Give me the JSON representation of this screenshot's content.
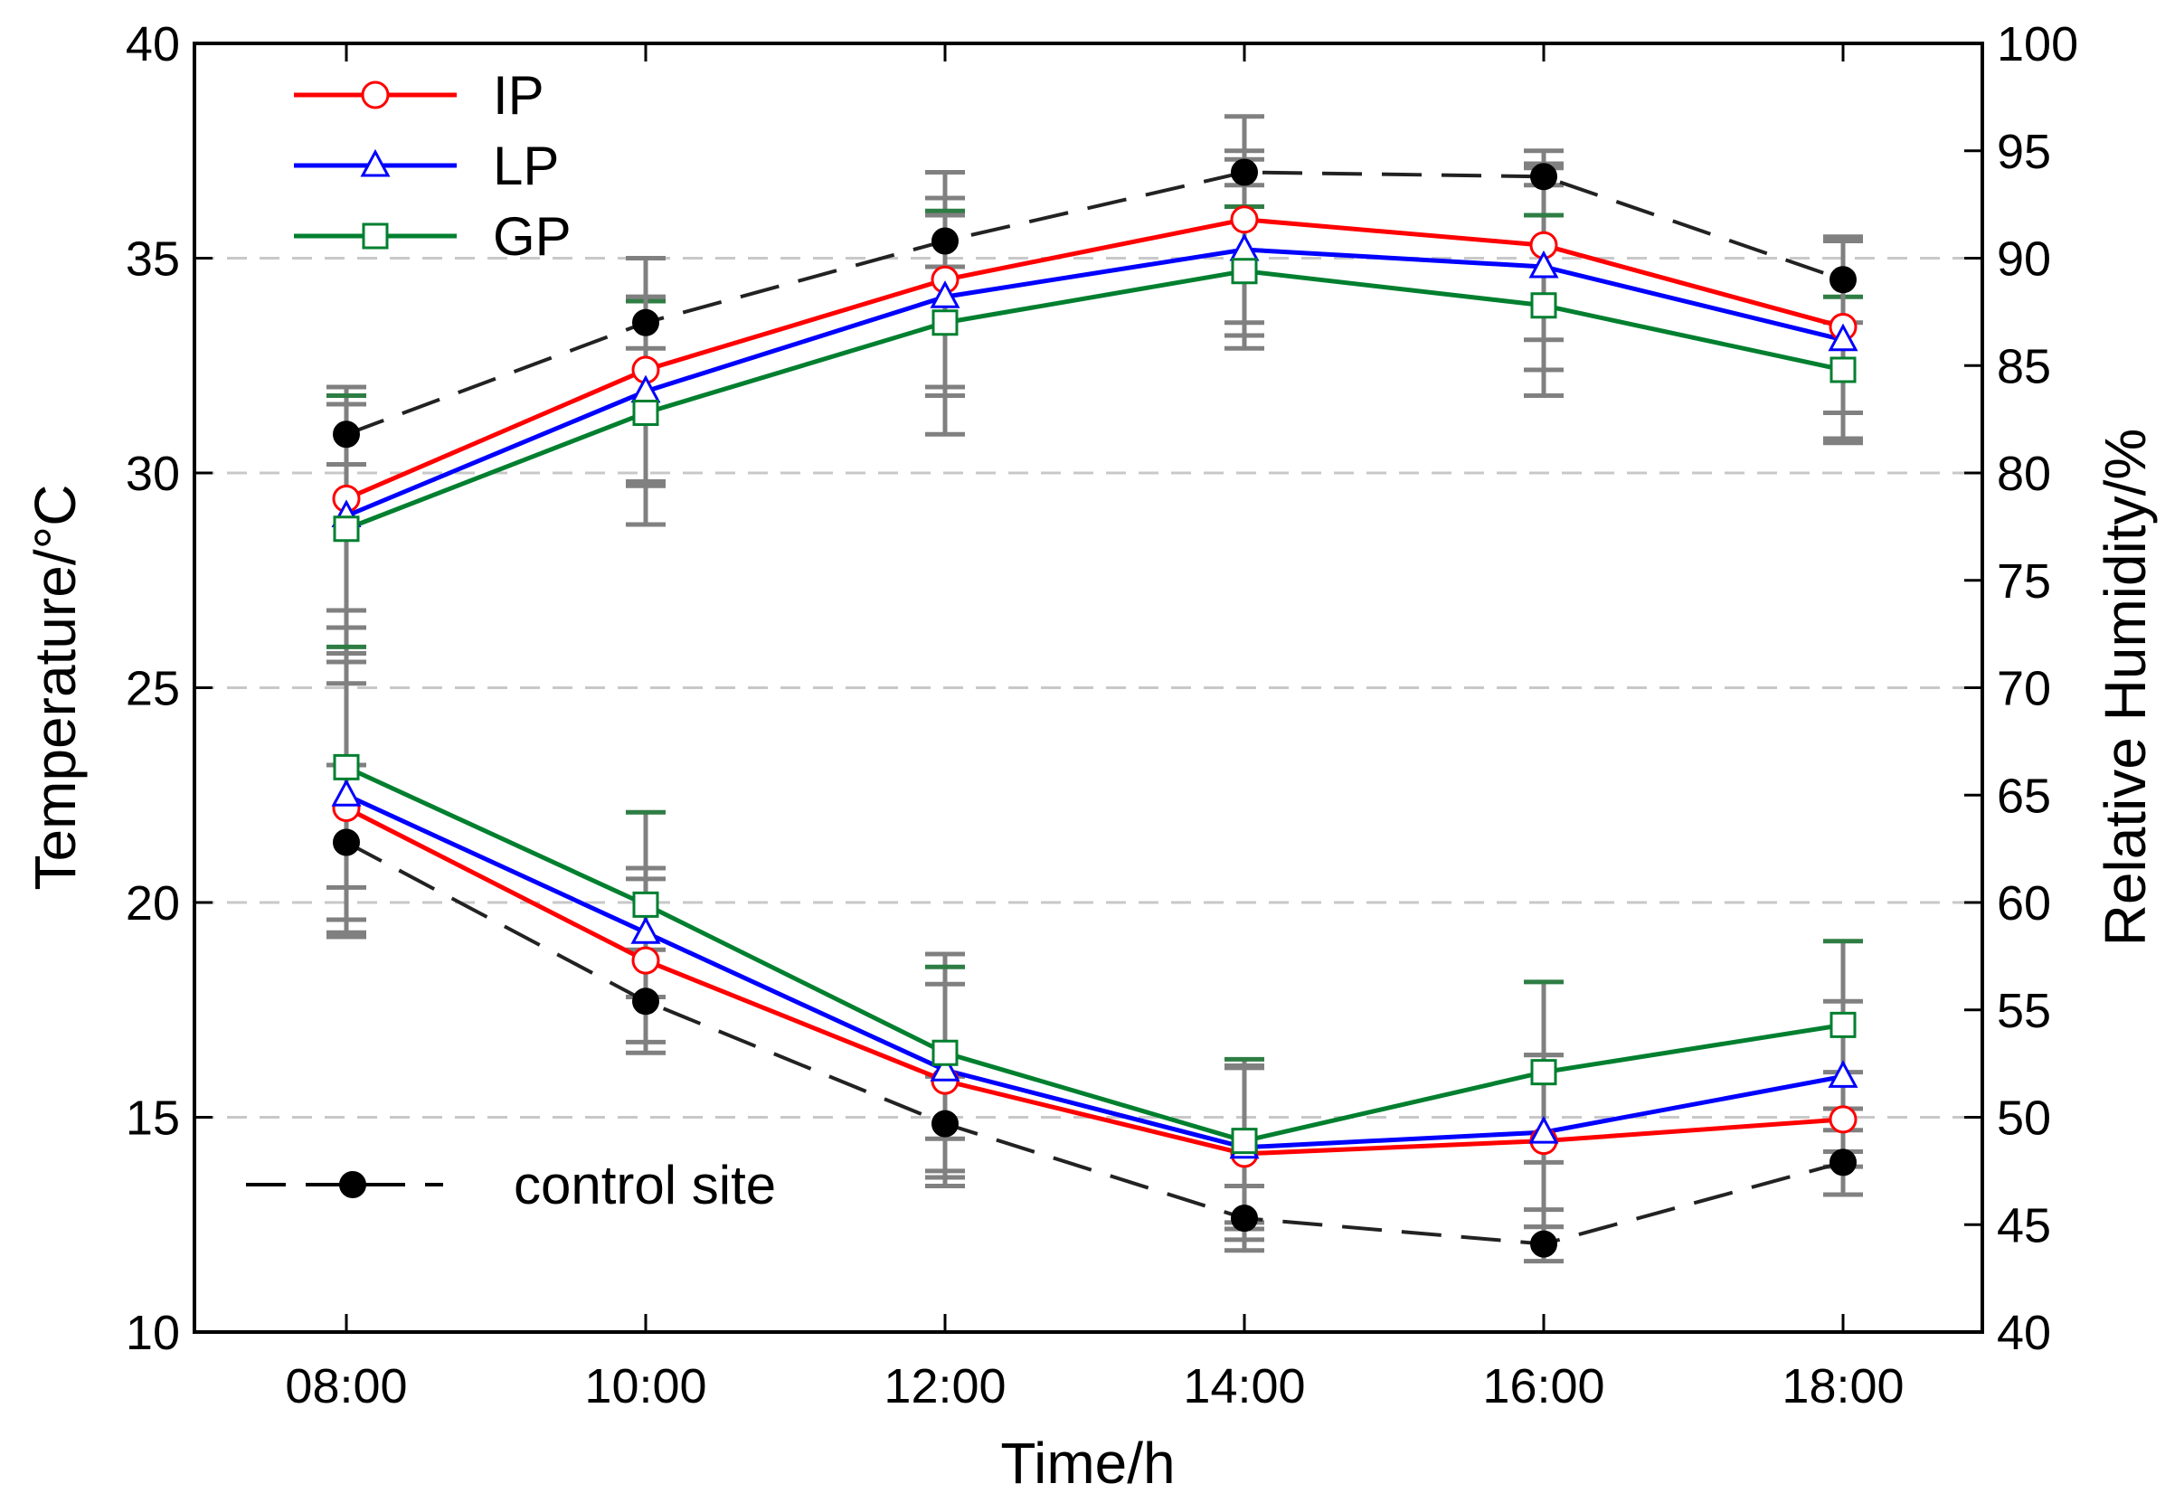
{
  "chart_data": {
    "type": "line",
    "title": "",
    "xlabel": "Time/h",
    "ylabel_left": "Temperature/°C",
    "ylabel_right": "Relative Humidity/%",
    "categories": [
      "08:00",
      "10:00",
      "12:00",
      "14:00",
      "16:00",
      "18:00"
    ],
    "ylim_left": [
      10,
      40
    ],
    "ylim_right": [
      40,
      100
    ],
    "yticks_left": [
      "10",
      "15",
      "20",
      "25",
      "30",
      "35",
      "40"
    ],
    "yticks_right": [
      "40",
      "45",
      "50",
      "55",
      "60",
      "65",
      "70",
      "75",
      "80",
      "85",
      "90",
      "95",
      "100"
    ],
    "grid": "horizontal dashed at left-axis ticks 15–35",
    "legend_top": {
      "placement": "top-left",
      "entries": [
        "IP",
        "LP",
        "GP"
      ]
    },
    "legend_bottom": {
      "placement": "bottom-left",
      "entries": [
        "control site"
      ]
    },
    "temperature_series": [
      {
        "name": "IP",
        "color": "#ff0000",
        "marker": "circle",
        "values": [
          29.4,
          32.4,
          34.5,
          35.9,
          35.3,
          33.4
        ],
        "errors": [
          2.6,
          2.6,
          2.5,
          2.4,
          2.2,
          2.0
        ]
      },
      {
        "name": "LP",
        "color": "#0000ff",
        "marker": "triangle",
        "values": [
          29.0,
          31.9,
          34.1,
          35.2,
          34.8,
          33.1
        ],
        "errors": [
          2.6,
          2.2,
          2.3,
          2.3,
          2.4,
          2.3
        ]
      },
      {
        "name": "GP",
        "color": "#007f2f",
        "marker": "square",
        "values": [
          28.7,
          31.4,
          33.5,
          34.7,
          33.9,
          32.4
        ],
        "errors": [
          3.1,
          2.6,
          2.6,
          1.5,
          2.1,
          1.7
        ]
      },
      {
        "name": "control site",
        "color": "#000000",
        "marker": "filled-circle",
        "dashed": true,
        "values": [
          30.9,
          33.5,
          35.4,
          37.0,
          36.9,
          34.5
        ],
        "errors": [
          0.7,
          0.6,
          0.6,
          0.3,
          0.2,
          1.0
        ]
      }
    ],
    "humidity_series": [
      {
        "name": "IP",
        "color": "#ff0000",
        "marker": "circle",
        "values": [
          64.4,
          57.3,
          51.7,
          48.3,
          48.9,
          49.9
        ],
        "errors": [
          5.8,
          3.8,
          4.5,
          4.0,
          4.0,
          2.2
        ]
      },
      {
        "name": "LP",
        "color": "#0000ff",
        "marker": "triangle",
        "values": [
          65.0,
          58.6,
          52.2,
          48.6,
          49.3,
          51.9
        ],
        "errors": [
          6.6,
          3.0,
          5.4,
          3.8,
          3.6,
          3.5
        ]
      },
      {
        "name": "GP",
        "color": "#007f2f",
        "marker": "square",
        "values": [
          66.3,
          59.9,
          53.0,
          48.9,
          52.1,
          54.3
        ],
        "errors": [
          5.6,
          4.3,
          4.0,
          3.8,
          4.2,
          3.9
        ]
      },
      {
        "name": "control site",
        "color": "#000000",
        "marker": "filled-circle",
        "dashed": true,
        "values": [
          62.8,
          55.4,
          49.7,
          45.3,
          44.1,
          47.9
        ],
        "errors": [
          3.6,
          2.4,
          2.2,
          1.5,
          0.8,
          1.5
        ]
      }
    ]
  }
}
